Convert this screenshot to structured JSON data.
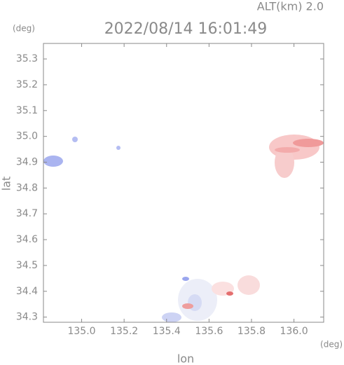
{
  "chart_data": {
    "type": "map",
    "title": "2022/08/14 16:01:49",
    "subtitle": "ALT(km) 2.0",
    "y_unit": "(deg)",
    "x_unit": "(deg)",
    "xlabel": "lon",
    "ylabel": "lat",
    "xlim": [
      134.82,
      136.14
    ],
    "ylim": [
      34.28,
      35.36
    ],
    "xticks": [
      {
        "value": 135,
        "label": "135.0"
      },
      135.2,
      135.4,
      135.6,
      135.8,
      {
        "value": 136,
        "label": "136.0"
      }
    ],
    "yticks": [
      34.3,
      34.4,
      34.5,
      34.6,
      34.7,
      34.8,
      34.9,
      {
        "value": 35,
        "label": "35.0"
      },
      35.1,
      35.2,
      35.3
    ],
    "grid": false
  }
}
